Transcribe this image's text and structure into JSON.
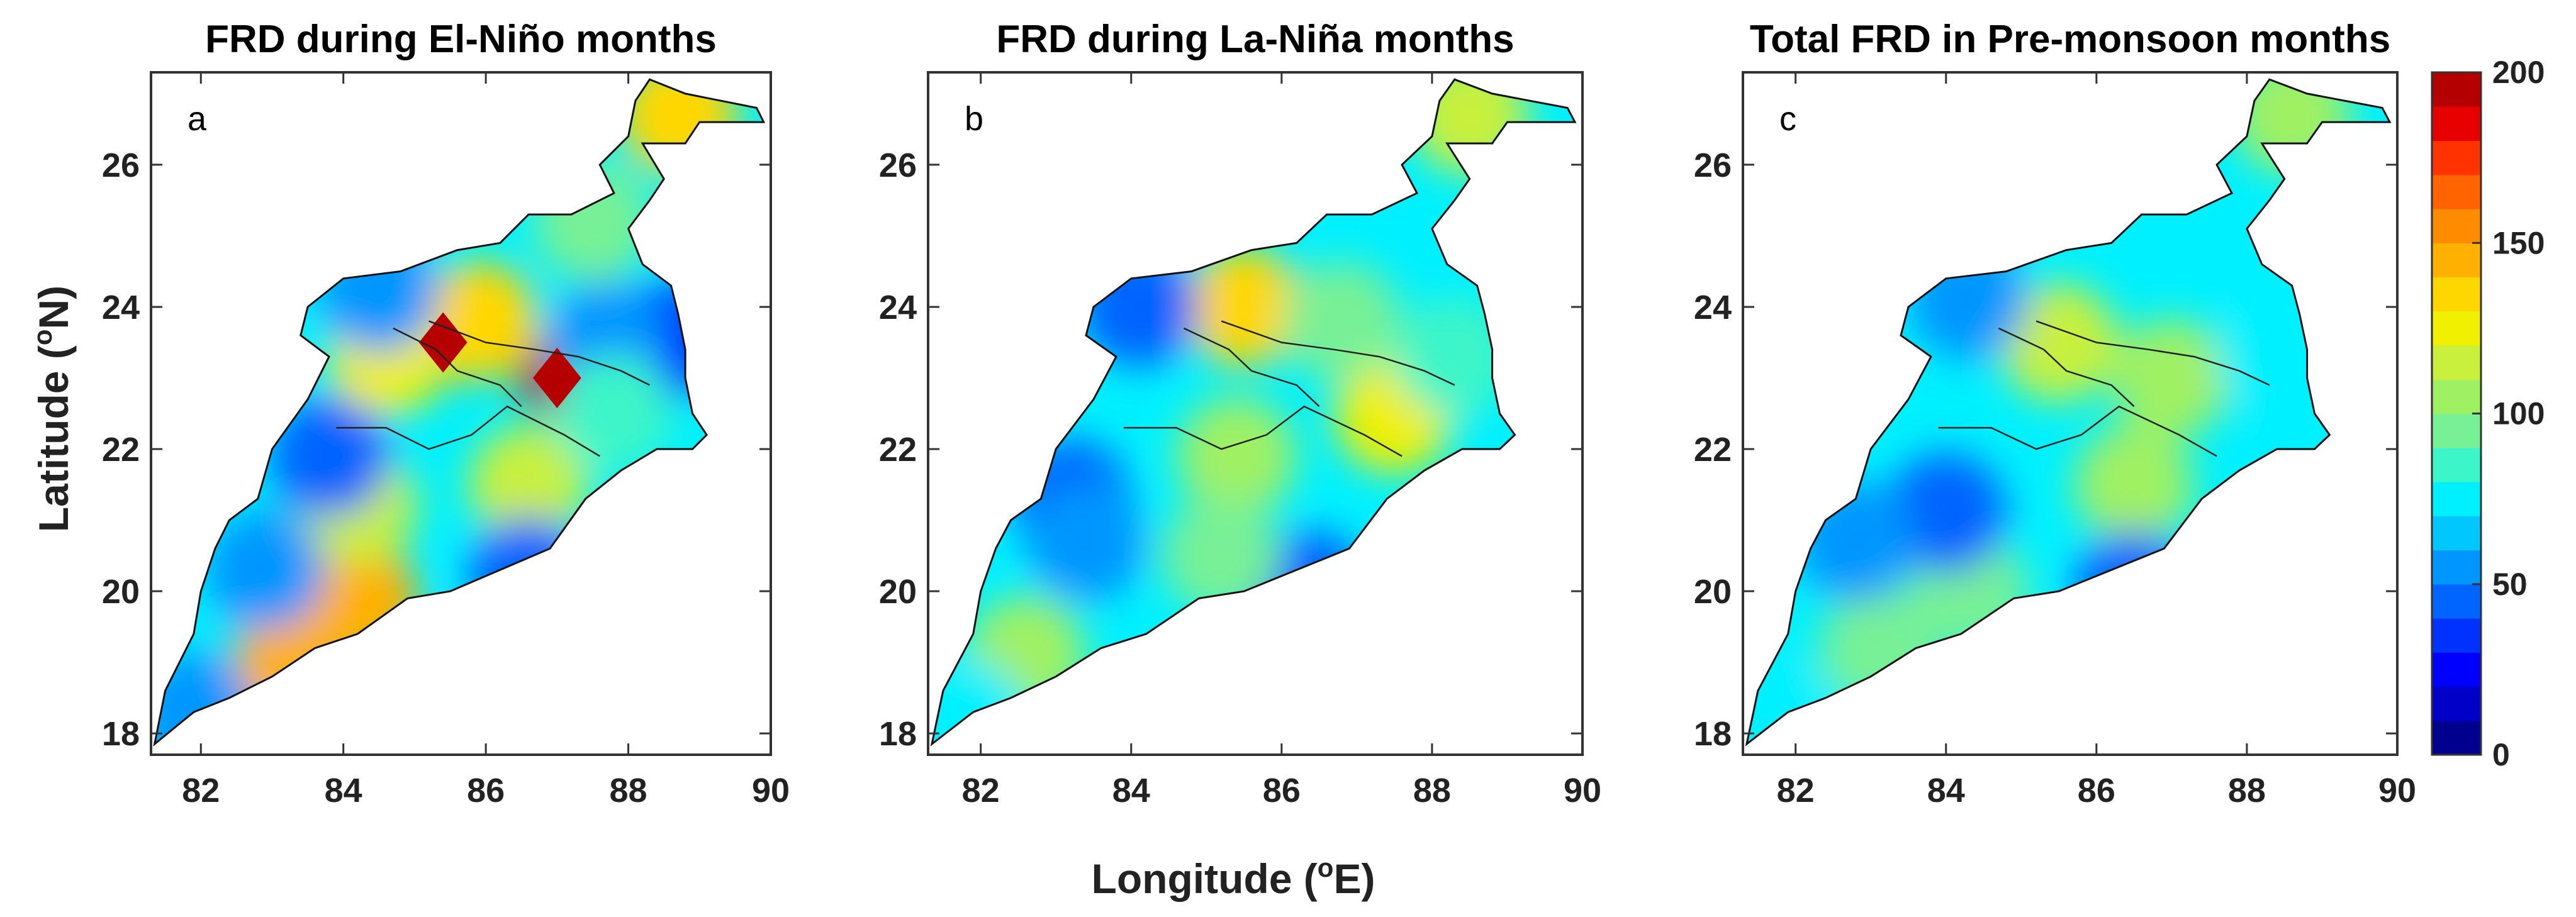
{
  "chart_data": {
    "type": "heatmap",
    "shared_ylabel": "Latitude (oN)",
    "shared_xlabel": "Longitude (oE)",
    "xlim": [
      81.3,
      90
    ],
    "ylim": [
      17.7,
      27.3
    ],
    "xticks": [
      82,
      84,
      86,
      88,
      90
    ],
    "yticks": [
      18,
      20,
      22,
      24,
      26
    ],
    "colorbar": {
      "min": 0,
      "max": 200,
      "step": 10,
      "ticks": [
        0,
        50,
        100,
        150,
        200
      ],
      "colors": [
        "#00008f",
        "#0000c8",
        "#0000ff",
        "#0032ff",
        "#0064ff",
        "#0096ff",
        "#00c8ff",
        "#00f0ff",
        "#3cf5c8",
        "#78f096",
        "#a0f064",
        "#c8f03c",
        "#f0f000",
        "#ffd700",
        "#ffb000",
        "#ff8c00",
        "#ff6400",
        "#ff3200",
        "#e60000",
        "#b40000"
      ]
    },
    "panels": [
      {
        "letter": "a",
        "title": "FRD during El-Niño months",
        "hotspots": [
          {
            "lon": 85.4,
            "lat": 23.5,
            "value": 200
          },
          {
            "lon": 87.0,
            "lat": 23.0,
            "value": 190
          },
          {
            "lon": 84.2,
            "lat": 19.9,
            "value": 140
          },
          {
            "lon": 83.3,
            "lat": 19.0,
            "value": 145
          },
          {
            "lon": 85.9,
            "lat": 23.8,
            "value": 130
          },
          {
            "lon": 84.6,
            "lat": 23.3,
            "value": 120
          },
          {
            "lon": 84.2,
            "lat": 21.2,
            "value": 110
          },
          {
            "lon": 86.6,
            "lat": 21.5,
            "value": 110
          },
          {
            "lon": 84.5,
            "lat": 24.2,
            "value": 50
          },
          {
            "lon": 88.5,
            "lat": 23.5,
            "value": 35
          },
          {
            "lon": 87.7,
            "lat": 23.5,
            "value": 55
          },
          {
            "lon": 86.6,
            "lat": 20.2,
            "value": 40
          },
          {
            "lon": 83.8,
            "lat": 21.9,
            "value": 45
          },
          {
            "lon": 82.9,
            "lat": 20.3,
            "value": 50
          },
          {
            "lon": 81.9,
            "lat": 18.3,
            "value": 55
          },
          {
            "lon": 88.7,
            "lat": 26.7,
            "value": 130
          },
          {
            "lon": 87.5,
            "lat": 25.2,
            "value": 90
          },
          {
            "lon": 87.8,
            "lat": 22.5,
            "value": 80
          }
        ]
      },
      {
        "letter": "b",
        "title": "FRD during La-Niña months",
        "hotspots": [
          {
            "lon": 85.5,
            "lat": 24.0,
            "value": 130
          },
          {
            "lon": 87.5,
            "lat": 22.5,
            "value": 120
          },
          {
            "lon": 84.1,
            "lat": 24.0,
            "value": 40
          },
          {
            "lon": 83.2,
            "lat": 21.3,
            "value": 45
          },
          {
            "lon": 86.4,
            "lat": 20.0,
            "value": 40
          },
          {
            "lon": 82.6,
            "lat": 19.1,
            "value": 105
          },
          {
            "lon": 85.4,
            "lat": 21.9,
            "value": 100
          },
          {
            "lon": 86.8,
            "lat": 23.8,
            "value": 95
          },
          {
            "lon": 85.2,
            "lat": 20.5,
            "value": 90
          },
          {
            "lon": 83.4,
            "lat": 20.7,
            "value": 55
          },
          {
            "lon": 88.5,
            "lat": 26.7,
            "value": 110
          },
          {
            "lon": 88.3,
            "lat": 23.3,
            "value": 80
          },
          {
            "lon": 81.8,
            "lat": 18.2,
            "value": 70
          }
        ]
      },
      {
        "letter": "c",
        "title": "Total FRD in Pre-monsoon months",
        "hotspots": [
          {
            "lon": 85.5,
            "lat": 23.5,
            "value": 110
          },
          {
            "lon": 87.0,
            "lat": 23.0,
            "value": 100
          },
          {
            "lon": 86.5,
            "lat": 21.5,
            "value": 100
          },
          {
            "lon": 84.3,
            "lat": 20.0,
            "value": 95
          },
          {
            "lon": 83.1,
            "lat": 19.2,
            "value": 95
          },
          {
            "lon": 84.0,
            "lat": 21.1,
            "value": 45
          },
          {
            "lon": 86.5,
            "lat": 20.0,
            "value": 45
          },
          {
            "lon": 84.3,
            "lat": 24.1,
            "value": 55
          },
          {
            "lon": 88.4,
            "lat": 23.3,
            "value": 75
          },
          {
            "lon": 82.8,
            "lat": 20.7,
            "value": 55
          },
          {
            "lon": 88.6,
            "lat": 26.7,
            "value": 100
          },
          {
            "lon": 81.8,
            "lat": 18.2,
            "value": 70
          }
        ]
      }
    ],
    "region_outline": [
      [
        81.35,
        17.85
      ],
      [
        81.9,
        18.3
      ],
      [
        82.4,
        18.5
      ],
      [
        83.0,
        18.8
      ],
      [
        83.6,
        19.2
      ],
      [
        84.2,
        19.4
      ],
      [
        84.9,
        19.9
      ],
      [
        85.5,
        20.0
      ],
      [
        86.2,
        20.3
      ],
      [
        86.9,
        20.6
      ],
      [
        87.4,
        21.3
      ],
      [
        87.9,
        21.7
      ],
      [
        88.4,
        22.0
      ],
      [
        88.9,
        22.0
      ],
      [
        89.1,
        22.2
      ],
      [
        88.9,
        22.5
      ],
      [
        88.8,
        23.0
      ],
      [
        88.8,
        23.4
      ],
      [
        88.7,
        23.9
      ],
      [
        88.6,
        24.3
      ],
      [
        88.2,
        24.6
      ],
      [
        88.0,
        25.1
      ],
      [
        88.3,
        25.5
      ],
      [
        88.5,
        25.8
      ],
      [
        88.2,
        26.3
      ],
      [
        88.8,
        26.3
      ],
      [
        89.0,
        26.6
      ],
      [
        89.9,
        26.6
      ],
      [
        89.8,
        26.8
      ],
      [
        88.8,
        27.0
      ],
      [
        88.3,
        27.2
      ],
      [
        88.1,
        26.9
      ],
      [
        88.0,
        26.4
      ],
      [
        87.6,
        26.0
      ],
      [
        87.8,
        25.6
      ],
      [
        87.2,
        25.3
      ],
      [
        86.6,
        25.3
      ],
      [
        86.2,
        24.9
      ],
      [
        85.6,
        24.8
      ],
      [
        84.8,
        24.5
      ],
      [
        84.0,
        24.4
      ],
      [
        83.5,
        24.0
      ],
      [
        83.4,
        23.6
      ],
      [
        83.8,
        23.3
      ],
      [
        83.5,
        22.7
      ],
      [
        83.0,
        22.0
      ],
      [
        82.8,
        21.3
      ],
      [
        82.4,
        21.0
      ],
      [
        82.2,
        20.6
      ],
      [
        82.0,
        20.0
      ],
      [
        81.9,
        19.4
      ],
      [
        81.5,
        18.6
      ],
      [
        81.35,
        17.85
      ]
    ],
    "boundary_lines": [
      [
        [
          83.9,
          22.3
        ],
        [
          84.6,
          22.3
        ],
        [
          85.2,
          22.0
        ],
        [
          85.8,
          22.2
        ],
        [
          86.3,
          22.6
        ],
        [
          87.1,
          22.2
        ],
        [
          87.6,
          21.9
        ]
      ],
      [
        [
          85.2,
          23.8
        ],
        [
          86.0,
          23.5
        ],
        [
          86.7,
          23.4
        ],
        [
          87.3,
          23.3
        ],
        [
          87.9,
          23.1
        ],
        [
          88.3,
          22.9
        ]
      ],
      [
        [
          84.7,
          23.7
        ],
        [
          85.3,
          23.4
        ],
        [
          85.6,
          23.1
        ],
        [
          86.2,
          22.9
        ],
        [
          86.5,
          22.6
        ]
      ]
    ]
  }
}
